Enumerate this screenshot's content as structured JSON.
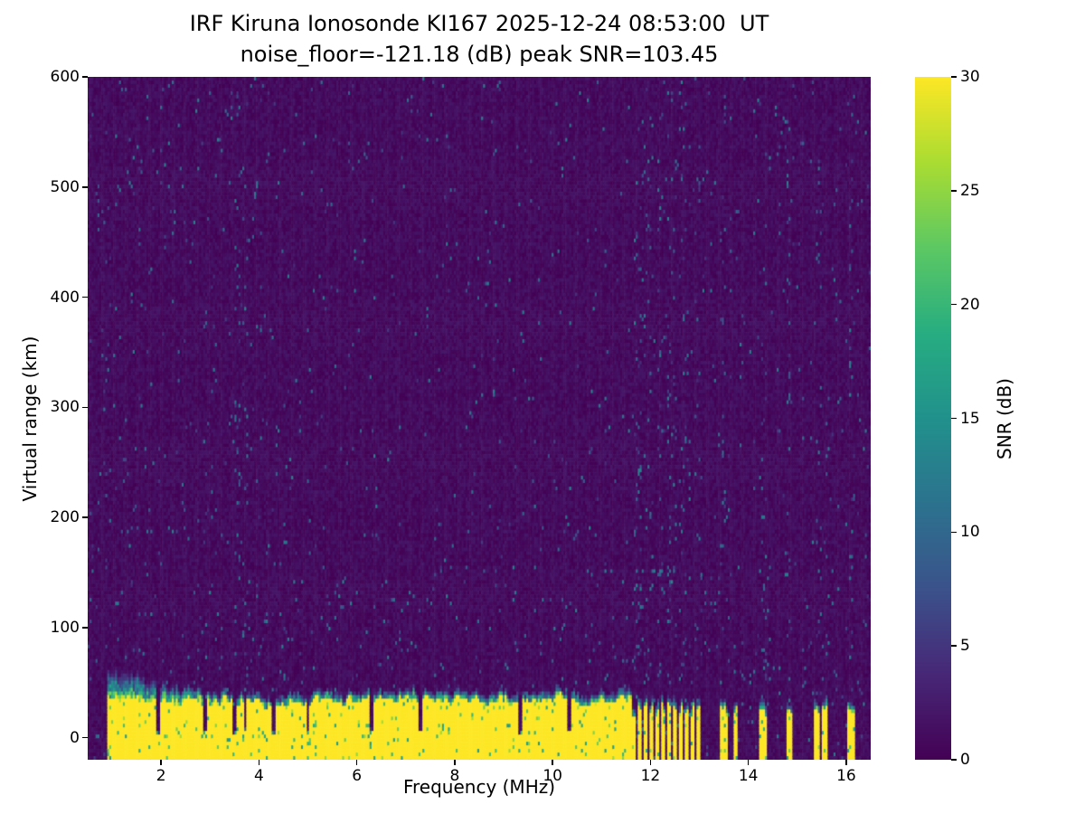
{
  "chart_data": {
    "type": "heatmap",
    "title": "IRF Kiruna Ionosonde KI167 2025-12-24 08:53:00  UT",
    "subtitle": "noise_floor=-121.18 (dB) peak SNR=103.45",
    "station": "IRF Kiruna Ionosonde KI167",
    "timestamp_ut": "2025-12-24 08:53:00",
    "noise_floor_db": -121.18,
    "peak_snr_db": 103.45,
    "xlabel": "Frequency (MHz)",
    "ylabel": "Virtual range (km)",
    "xlim": [
      0.5,
      16.5
    ],
    "ylim": [
      -20,
      600
    ],
    "x_ticks": [
      2,
      4,
      6,
      8,
      10,
      12,
      14,
      16
    ],
    "y_ticks": [
      0,
      100,
      200,
      300,
      400,
      500,
      600
    ],
    "grid": false,
    "legend": "none",
    "colorbar": {
      "label": "SNR (dB)",
      "min": 0,
      "max": 30,
      "ticks": [
        0,
        5,
        10,
        15,
        20,
        25,
        30
      ],
      "colormap": "viridis"
    },
    "colormap_anchors": [
      [
        0.0,
        68,
        1,
        84
      ],
      [
        0.125,
        71,
        39,
        119
      ],
      [
        0.25,
        59,
        82,
        139
      ],
      [
        0.375,
        44,
        114,
        142
      ],
      [
        0.5,
        33,
        145,
        140
      ],
      [
        0.625,
        39,
        173,
        129
      ],
      [
        0.75,
        92,
        200,
        99
      ],
      [
        0.875,
        170,
        220,
        50
      ],
      [
        1.0,
        253,
        231,
        37
      ]
    ],
    "heatmap": {
      "seed": 20251224,
      "background_noise_db_max": 2.2,
      "speckle_prob": 0.012,
      "speckle_db": [
        4,
        13
      ],
      "rfi_columns_mhz": [
        3.55,
        3.75,
        11.75,
        11.95,
        12.2,
        12.45,
        12.7,
        12.95,
        13.5,
        14.3,
        14.85,
        15.45,
        16.1
      ],
      "echo_band": {
        "freq_start_mhz": 0.9,
        "solid_end_mhz": 11.6,
        "top_km_mean": 32,
        "top_km_jitter": 9,
        "saturated_snr_db": 30,
        "notches_mhz": [
          1.95,
          2.9,
          3.5,
          3.72,
          4.3,
          5.0,
          6.3,
          7.3,
          9.35,
          10.35
        ],
        "comb": {
          "start_mhz": 11.62,
          "end_mhz": 13.05,
          "period_mhz": 0.12,
          "duty": 0.55,
          "top_km": 26
        },
        "stripes_mhz": [
          [
            13.44,
            13.56
          ],
          [
            13.7,
            13.78
          ],
          [
            14.24,
            14.36
          ],
          [
            14.79,
            14.91
          ],
          [
            15.33,
            15.47
          ],
          [
            15.51,
            15.63
          ],
          [
            16.03,
            16.16
          ]
        ]
      }
    }
  }
}
